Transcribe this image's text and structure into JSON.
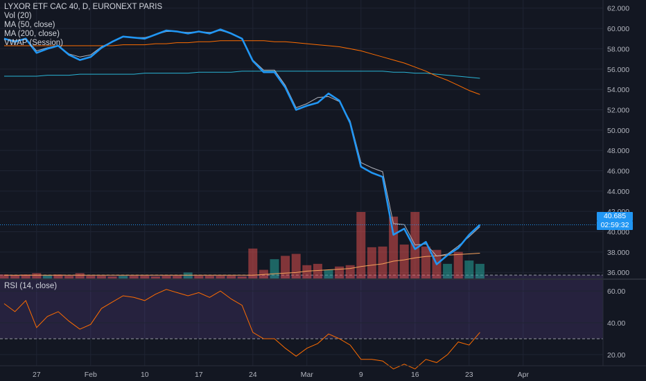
{
  "legend": {
    "title": "LYXOR ETF CAC 40, D, EURONEXT PARIS",
    "vol": "Vol (20)",
    "ma50": "MA (50, close)",
    "ma200": "MA (200, close)",
    "vwap": "VWAP (Session)"
  },
  "rsi_label": "RSI (14, close)",
  "price_tag": "40.685",
  "countdown_tag": "02:59:32",
  "colors": {
    "background": "#131722",
    "price": "#2196f3",
    "ma50": "#ff6d00",
    "ma200": "#2ab5d6",
    "vwap": "#b2b5be",
    "vol_up": "#26a69a",
    "vol_down": "#ef5350",
    "rsi": "#ff6d00",
    "rsi_band": "#7e57c2"
  },
  "chart_data": [
    {
      "type": "line",
      "title": "LYXOR ETF CAC 40, D, EURONEXT PARIS",
      "x": [
        "Jan 22",
        "Jan 23",
        "Jan 24",
        "Jan 27",
        "Jan 28",
        "Jan 29",
        "Jan 30",
        "Jan 31",
        "Feb 3",
        "Feb 4",
        "Feb 5",
        "Feb 6",
        "Feb 7",
        "Feb 10",
        "Feb 11",
        "Feb 12",
        "Feb 13",
        "Feb 14",
        "Feb 17",
        "Feb 18",
        "Feb 19",
        "Feb 20",
        "Feb 21",
        "Feb 24",
        "Feb 25",
        "Feb 26",
        "Feb 27",
        "Feb 28",
        "Mar 2",
        "Mar 3",
        "Mar 4",
        "Mar 5",
        "Mar 6",
        "Mar 9",
        "Mar 10",
        "Mar 11",
        "Mar 12",
        "Mar 13",
        "Mar 16",
        "Mar 17",
        "Mar 18",
        "Mar 19",
        "Mar 20",
        "Mar 23",
        "Mar 24"
      ],
      "xticks": [
        "27",
        "Feb",
        "10",
        "17",
        "24",
        "Mar",
        "9",
        "16",
        "23",
        "Apr"
      ],
      "yticks": [
        "36.000",
        "38.000",
        "40.000",
        "42.000",
        "44.000",
        "46.000",
        "48.000",
        "50.000",
        "52.000",
        "54.000",
        "56.000",
        "58.000",
        "60.000",
        "62.000"
      ],
      "ylim": [
        35.4,
        62.8
      ],
      "grid": true,
      "series": [
        {
          "name": "Close",
          "values": [
            59.0,
            58.7,
            59.0,
            57.6,
            58.0,
            58.3,
            57.4,
            56.9,
            57.2,
            58.1,
            58.7,
            59.2,
            59.1,
            59.0,
            59.4,
            59.8,
            59.7,
            59.5,
            59.7,
            59.5,
            59.9,
            59.5,
            59.0,
            56.8,
            55.7,
            55.7,
            54.2,
            52.0,
            52.4,
            52.7,
            53.6,
            52.9,
            50.7,
            46.4,
            45.8,
            45.4,
            39.7,
            40.3,
            38.3,
            39.0,
            36.8,
            37.7,
            38.4,
            39.7,
            40.685
          ]
        },
        {
          "name": "MA (50, close)",
          "values": [
            58.3,
            58.3,
            58.3,
            58.3,
            58.3,
            58.3,
            58.3,
            58.3,
            58.3,
            58.3,
            58.3,
            58.4,
            58.4,
            58.4,
            58.5,
            58.5,
            58.6,
            58.6,
            58.7,
            58.7,
            58.8,
            58.8,
            58.8,
            58.8,
            58.8,
            58.7,
            58.7,
            58.6,
            58.5,
            58.4,
            58.3,
            58.2,
            58.0,
            57.8,
            57.5,
            57.2,
            56.9,
            56.6,
            56.2,
            55.8,
            55.3,
            54.9,
            54.4,
            53.9,
            53.5
          ]
        },
        {
          "name": "MA (200, close)",
          "values": [
            55.3,
            55.3,
            55.3,
            55.3,
            55.4,
            55.4,
            55.4,
            55.5,
            55.5,
            55.5,
            55.5,
            55.5,
            55.5,
            55.6,
            55.6,
            55.6,
            55.6,
            55.6,
            55.7,
            55.7,
            55.7,
            55.7,
            55.8,
            55.8,
            55.8,
            55.8,
            55.8,
            55.8,
            55.8,
            55.8,
            55.8,
            55.8,
            55.8,
            55.8,
            55.8,
            55.8,
            55.7,
            55.7,
            55.6,
            55.6,
            55.5,
            55.4,
            55.3,
            55.2,
            55.1
          ]
        }
      ],
      "vwap": [
        59.0,
        58.8,
        59.0,
        57.8,
        58.1,
        58.3,
        57.5,
        57.2,
        57.4,
        58.2,
        58.7,
        59.2,
        59.1,
        59.1,
        59.4,
        59.7,
        59.7,
        59.6,
        59.7,
        59.6,
        59.8,
        59.5,
        59.0,
        56.9,
        55.9,
        55.9,
        54.4,
        52.2,
        52.6,
        53.2,
        53.3,
        52.8,
        50.9,
        46.8,
        46.3,
        45.9,
        40.8,
        40.7,
        38.7,
        38.8,
        37.6,
        37.8,
        38.6,
        39.5,
        40.5
      ]
    },
    {
      "type": "bar",
      "name": "Vol (20)",
      "categories": [
        "Jan 22",
        "Jan 23",
        "Jan 24",
        "Jan 27",
        "Jan 28",
        "Jan 29",
        "Jan 30",
        "Jan 31",
        "Feb 3",
        "Feb 4",
        "Feb 5",
        "Feb 6",
        "Feb 7",
        "Feb 10",
        "Feb 11",
        "Feb 12",
        "Feb 13",
        "Feb 14",
        "Feb 17",
        "Feb 18",
        "Feb 19",
        "Feb 20",
        "Feb 21",
        "Feb 24",
        "Feb 25",
        "Feb 26",
        "Feb 27",
        "Feb 28",
        "Mar 2",
        "Mar 3",
        "Mar 4",
        "Mar 5",
        "Mar 6",
        "Mar 9",
        "Mar 10",
        "Mar 11",
        "Mar 12",
        "Mar 13",
        "Mar 16",
        "Mar 17",
        "Mar 18",
        "Mar 19",
        "Mar 20",
        "Mar 23",
        "Mar 24"
      ],
      "values": [
        6,
        5,
        6,
        8,
        5,
        6,
        4,
        8,
        4,
        4,
        3,
        4,
        4,
        4,
        3,
        4,
        4,
        9,
        4,
        4,
        4,
        4,
        3,
        45,
        13,
        29,
        34,
        37,
        20,
        22,
        13,
        18,
        20,
        100,
        47,
        48,
        93,
        51,
        100,
        48,
        43,
        22,
        40,
        27,
        22
      ],
      "up": [
        false,
        false,
        false,
        false,
        true,
        false,
        false,
        false,
        false,
        false,
        false,
        true,
        false,
        false,
        false,
        false,
        false,
        true,
        false,
        false,
        false,
        false,
        false,
        false,
        false,
        true,
        false,
        false,
        false,
        false,
        true,
        false,
        false,
        false,
        false,
        false,
        false,
        false,
        false,
        false,
        false,
        true,
        false,
        true,
        true
      ],
      "ma": [
        5,
        5,
        5,
        5,
        5,
        5,
        5,
        5,
        5,
        5,
        5,
        5,
        5,
        5,
        5,
        5,
        5,
        5,
        5,
        5,
        5,
        5,
        5,
        5,
        6,
        7,
        8,
        9,
        11,
        12,
        13,
        14,
        15,
        18,
        20,
        22,
        26,
        28,
        31,
        33,
        34,
        35,
        36,
        37,
        38
      ]
    },
    {
      "type": "line",
      "name": "RSI (14, close)",
      "x": [
        "Jan 22",
        "Jan 23",
        "Jan 24",
        "Jan 27",
        "Jan 28",
        "Jan 29",
        "Jan 30",
        "Jan 31",
        "Feb 3",
        "Feb 4",
        "Feb 5",
        "Feb 6",
        "Feb 7",
        "Feb 10",
        "Feb 11",
        "Feb 12",
        "Feb 13",
        "Feb 14",
        "Feb 17",
        "Feb 18",
        "Feb 19",
        "Feb 20",
        "Feb 21",
        "Feb 24",
        "Feb 25",
        "Feb 26",
        "Feb 27",
        "Feb 28",
        "Mar 2",
        "Mar 3",
        "Mar 4",
        "Mar 5",
        "Mar 6",
        "Mar 9",
        "Mar 10",
        "Mar 11",
        "Mar 12",
        "Mar 13",
        "Mar 16",
        "Mar 17",
        "Mar 18",
        "Mar 19",
        "Mar 20",
        "Mar 23",
        "Mar 24"
      ],
      "values": [
        52,
        47,
        54,
        37,
        44,
        47,
        41,
        36,
        39,
        49,
        53,
        57,
        56,
        54,
        58,
        61,
        59,
        57,
        59,
        56,
        60,
        55,
        51,
        34,
        30,
        30,
        24,
        19,
        24,
        27,
        33,
        30,
        26,
        17,
        17,
        16,
        11,
        14,
        11,
        17,
        15,
        20,
        28,
        26,
        34
      ],
      "yticks": [
        "20.00",
        "40.00",
        "60.00"
      ],
      "ylim": [
        13,
        67
      ],
      "bands": [
        30,
        70
      ]
    }
  ]
}
